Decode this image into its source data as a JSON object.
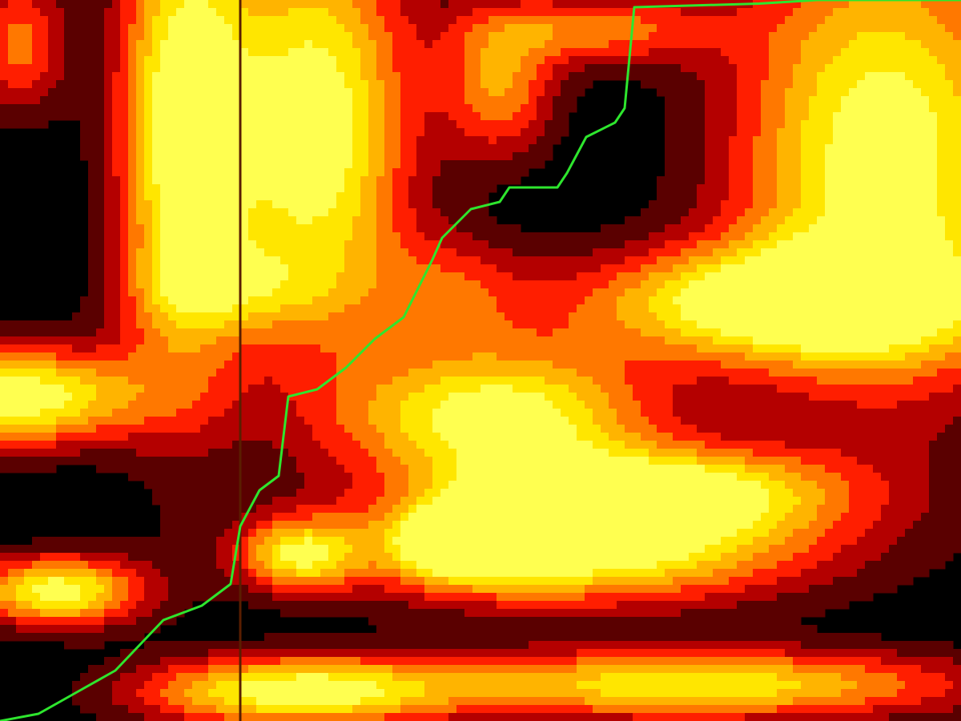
{
  "chart_data": {
    "type": "heatmap",
    "title": "",
    "xlabel": "",
    "ylabel": "",
    "color_levels": [
      "#000000",
      "#5a0000",
      "#b40000",
      "#ff1e00",
      "#ff7800",
      "#ffb400",
      "#ffe600",
      "#ffff50"
    ],
    "path_color": "#2ee62e",
    "marker_line_color": "#5a1e00",
    "x_range": [
      0,
      1
    ],
    "y_range": [
      0,
      1
    ],
    "marker_line_x": 0.25,
    "path": [
      [
        0.0,
        0.0
      ],
      [
        0.04,
        0.01
      ],
      [
        0.08,
        0.04
      ],
      [
        0.12,
        0.07
      ],
      [
        0.17,
        0.14
      ],
      [
        0.21,
        0.16
      ],
      [
        0.24,
        0.19
      ],
      [
        0.25,
        0.27
      ],
      [
        0.27,
        0.32
      ],
      [
        0.29,
        0.34
      ],
      [
        0.3,
        0.45
      ],
      [
        0.33,
        0.46
      ],
      [
        0.36,
        0.49
      ],
      [
        0.39,
        0.53
      ],
      [
        0.42,
        0.56
      ],
      [
        0.45,
        0.64
      ],
      [
        0.46,
        0.67
      ],
      [
        0.49,
        0.71
      ],
      [
        0.52,
        0.72
      ],
      [
        0.53,
        0.74
      ],
      [
        0.58,
        0.74
      ],
      [
        0.59,
        0.76
      ],
      [
        0.61,
        0.81
      ],
      [
        0.64,
        0.83
      ],
      [
        0.65,
        0.85
      ],
      [
        0.66,
        0.99
      ],
      [
        0.79,
        0.995
      ],
      [
        0.85,
        1.0
      ],
      [
        1.0,
        1.0
      ]
    ],
    "blobs": [
      {
        "x": 0.19,
        "y": 0.82,
        "rx": 0.07,
        "ry": 0.35,
        "v": 1.0
      },
      {
        "x": 0.33,
        "y": 0.82,
        "rx": 0.1,
        "ry": 0.3,
        "v": 1.0
      },
      {
        "x": 0.02,
        "y": 0.45,
        "rx": 0.13,
        "ry": 0.07,
        "v": 1.0
      },
      {
        "x": 0.06,
        "y": 0.18,
        "rx": 0.09,
        "ry": 0.05,
        "v": 0.95
      },
      {
        "x": 0.02,
        "y": 0.94,
        "rx": 0.05,
        "ry": 0.1,
        "v": 0.55
      },
      {
        "x": 0.52,
        "y": 0.42,
        "rx": 0.16,
        "ry": 0.1,
        "v": 1.0
      },
      {
        "x": 0.6,
        "y": 0.24,
        "rx": 0.24,
        "ry": 0.08,
        "v": 1.0
      },
      {
        "x": 0.7,
        "y": 0.32,
        "rx": 0.18,
        "ry": 0.06,
        "v": 0.8
      },
      {
        "x": 0.92,
        "y": 0.78,
        "rx": 0.16,
        "ry": 0.33,
        "v": 1.0
      },
      {
        "x": 0.8,
        "y": 0.58,
        "rx": 0.22,
        "ry": 0.08,
        "v": 0.9
      },
      {
        "x": 0.72,
        "y": 0.05,
        "rx": 0.3,
        "ry": 0.05,
        "v": 0.85
      },
      {
        "x": 0.3,
        "y": 0.04,
        "rx": 0.16,
        "ry": 0.05,
        "v": 0.9
      },
      {
        "x": 0.31,
        "y": 0.23,
        "rx": 0.06,
        "ry": 0.05,
        "v": 0.7
      },
      {
        "x": 0.47,
        "y": 0.25,
        "rx": 0.06,
        "ry": 0.05,
        "v": 0.6
      },
      {
        "x": 0.53,
        "y": 0.27,
        "rx": 0.06,
        "ry": 0.06,
        "v": 0.5
      },
      {
        "x": 0.52,
        "y": 0.88,
        "rx": 0.06,
        "ry": 0.1,
        "v": 0.6
      },
      {
        "x": 0.62,
        "y": 0.96,
        "rx": 0.12,
        "ry": 0.05,
        "v": 0.55
      },
      {
        "x": 0.47,
        "y": 0.6,
        "rx": 0.08,
        "ry": 0.08,
        "v": 0.35
      },
      {
        "x": 0.24,
        "y": 0.6,
        "rx": 0.1,
        "ry": 0.06,
        "v": 0.35
      }
    ]
  }
}
